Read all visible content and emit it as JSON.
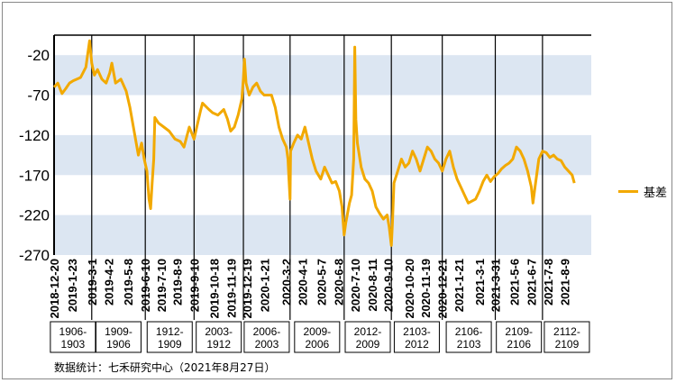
{
  "source_note": "数据统计：七禾研究中心（2021年8月27日）",
  "legend": {
    "label": "基差",
    "color": "#f2a900"
  },
  "colors": {
    "line": "#f2a900",
    "band": "#dce6f2",
    "axis": "#000000"
  },
  "chart_data": {
    "type": "line",
    "series": [
      {
        "name": "基差",
        "points": [
          [
            "2018-12-20",
            -60
          ],
          [
            "2018-12-27",
            -55
          ],
          [
            "2019-01-04",
            -68
          ],
          [
            "2019-01-11",
            -62
          ],
          [
            "2019-01-18",
            -55
          ],
          [
            "2019-01-25",
            -52
          ],
          [
            "2019-02-08",
            -48
          ],
          [
            "2019-02-18",
            -35
          ],
          [
            "2019-02-25",
            -2
          ],
          [
            "2019-03-01",
            -30
          ],
          [
            "2019-03-06",
            -45
          ],
          [
            "2019-03-12",
            -38
          ],
          [
            "2019-03-20",
            -50
          ],
          [
            "2019-03-28",
            -55
          ],
          [
            "2019-04-04",
            -42
          ],
          [
            "2019-04-08",
            -30
          ],
          [
            "2019-04-15",
            -55
          ],
          [
            "2019-04-25",
            -50
          ],
          [
            "2019-05-05",
            -65
          ],
          [
            "2019-05-12",
            -85
          ],
          [
            "2019-05-20",
            -115
          ],
          [
            "2019-05-28",
            -145
          ],
          [
            "2019-06-03",
            -130
          ],
          [
            "2019-06-08",
            -150
          ],
          [
            "2019-06-13",
            -165
          ],
          [
            "2019-06-17",
            -200
          ],
          [
            "2019-06-20",
            -212
          ],
          [
            "2019-06-23",
            -180
          ],
          [
            "2019-06-26",
            -150
          ],
          [
            "2019-06-28",
            -98
          ],
          [
            "2019-07-05",
            -105
          ],
          [
            "2019-07-15",
            -110
          ],
          [
            "2019-07-25",
            -115
          ],
          [
            "2019-08-05",
            -125
          ],
          [
            "2019-08-15",
            -128
          ],
          [
            "2019-08-22",
            -135
          ],
          [
            "2019-09-01",
            -110
          ],
          [
            "2019-09-10",
            -125
          ],
          [
            "2019-09-15",
            -110
          ],
          [
            "2019-09-22",
            -90
          ],
          [
            "2019-09-26",
            -80
          ],
          [
            "2019-10-08",
            -88
          ],
          [
            "2019-10-15",
            -92
          ],
          [
            "2019-10-25",
            -95
          ],
          [
            "2019-11-05",
            -88
          ],
          [
            "2019-11-12",
            -100
          ],
          [
            "2019-11-18",
            -115
          ],
          [
            "2019-11-25",
            -110
          ],
          [
            "2019-12-02",
            -95
          ],
          [
            "2019-12-09",
            -75
          ],
          [
            "2019-12-12",
            -50
          ],
          [
            "2019-12-14",
            -25
          ],
          [
            "2019-12-17",
            -55
          ],
          [
            "2019-12-23",
            -70
          ],
          [
            "2019-12-30",
            -60
          ],
          [
            "2020-01-06",
            -55
          ],
          [
            "2020-01-13",
            -65
          ],
          [
            "2020-01-20",
            -70
          ],
          [
            "2020-02-03",
            -70
          ],
          [
            "2020-02-10",
            -85
          ],
          [
            "2020-02-17",
            -110
          ],
          [
            "2020-02-24",
            -125
          ],
          [
            "2020-03-02",
            -135
          ],
          [
            "2020-03-05",
            -150
          ],
          [
            "2020-03-07",
            -175
          ],
          [
            "2020-03-09",
            -200
          ],
          [
            "2020-03-10",
            -140
          ],
          [
            "2020-03-16",
            -130
          ],
          [
            "2020-03-23",
            -120
          ],
          [
            "2020-03-30",
            -125
          ],
          [
            "2020-04-06",
            -110
          ],
          [
            "2020-04-13",
            -130
          ],
          [
            "2020-04-20",
            -150
          ],
          [
            "2020-04-27",
            -165
          ],
          [
            "2020-05-06",
            -175
          ],
          [
            "2020-05-13",
            -160
          ],
          [
            "2020-05-20",
            -170
          ],
          [
            "2020-05-27",
            -180
          ],
          [
            "2020-06-03",
            -178
          ],
          [
            "2020-06-10",
            -190
          ],
          [
            "2020-06-15",
            -210
          ],
          [
            "2020-06-19",
            -245
          ],
          [
            "2020-06-22",
            -230
          ],
          [
            "2020-06-29",
            -205
          ],
          [
            "2020-07-03",
            -195
          ],
          [
            "2020-07-07",
            -150
          ],
          [
            "2020-07-09",
            -10
          ],
          [
            "2020-07-11",
            -100
          ],
          [
            "2020-07-14",
            -130
          ],
          [
            "2020-07-21",
            -160
          ],
          [
            "2020-07-28",
            -175
          ],
          [
            "2020-08-04",
            -180
          ],
          [
            "2020-08-11",
            -190
          ],
          [
            "2020-08-18",
            -210
          ],
          [
            "2020-08-25",
            -218
          ],
          [
            "2020-09-01",
            -225
          ],
          [
            "2020-09-08",
            -220
          ],
          [
            "2020-09-12",
            -235
          ],
          [
            "2020-09-16",
            -258
          ],
          [
            "2020-09-18",
            -230
          ],
          [
            "2020-09-21",
            -180
          ],
          [
            "2020-09-28",
            -165
          ],
          [
            "2020-10-05",
            -150
          ],
          [
            "2020-10-12",
            -160
          ],
          [
            "2020-10-19",
            -155
          ],
          [
            "2020-10-26",
            -140
          ],
          [
            "2020-11-02",
            -150
          ],
          [
            "2020-11-09",
            -165
          ],
          [
            "2020-11-16",
            -150
          ],
          [
            "2020-11-23",
            -135
          ],
          [
            "2020-11-30",
            -140
          ],
          [
            "2020-12-07",
            -150
          ],
          [
            "2020-12-14",
            -155
          ],
          [
            "2020-12-21",
            -165
          ],
          [
            "2020-12-28",
            -150
          ],
          [
            "2021-01-04",
            -140
          ],
          [
            "2021-01-11",
            -160
          ],
          [
            "2021-01-18",
            -175
          ],
          [
            "2021-01-25",
            -185
          ],
          [
            "2021-02-01",
            -195
          ],
          [
            "2021-02-08",
            -205
          ],
          [
            "2021-02-22",
            -200
          ],
          [
            "2021-03-01",
            -190
          ],
          [
            "2021-03-08",
            -178
          ],
          [
            "2021-03-15",
            -170
          ],
          [
            "2021-03-22",
            -178
          ],
          [
            "2021-03-29",
            -172
          ],
          [
            "2021-04-05",
            -168
          ],
          [
            "2021-04-12",
            -162
          ],
          [
            "2021-04-19",
            -158
          ],
          [
            "2021-04-26",
            -155
          ],
          [
            "2021-05-03",
            -150
          ],
          [
            "2021-05-10",
            -135
          ],
          [
            "2021-05-17",
            -140
          ],
          [
            "2021-05-24",
            -150
          ],
          [
            "2021-05-31",
            -165
          ],
          [
            "2021-06-07",
            -185
          ],
          [
            "2021-06-10",
            -205
          ],
          [
            "2021-06-14",
            -185
          ],
          [
            "2021-06-21",
            -150
          ],
          [
            "2021-06-28",
            -140
          ],
          [
            "2021-07-05",
            -142
          ],
          [
            "2021-07-12",
            -148
          ],
          [
            "2021-07-19",
            -145
          ],
          [
            "2021-07-26",
            -150
          ],
          [
            "2021-08-02",
            -152
          ],
          [
            "2021-08-09",
            -160
          ],
          [
            "2021-08-16",
            -165
          ],
          [
            "2021-08-23",
            -170
          ],
          [
            "2021-08-27",
            -180
          ]
        ]
      }
    ],
    "ylim": [
      -270,
      5
    ],
    "yticks": [
      -20,
      -70,
      -120,
      -170,
      -220,
      -270
    ],
    "bands": [
      [
        -70,
        -20
      ],
      [
        -170,
        -120
      ],
      [
        -270,
        -220
      ]
    ],
    "x_range": [
      "2018-12-20",
      "2021-09-28"
    ],
    "x_ticks": [
      "2018-12-20",
      "2019-1-23",
      "2019-3-1",
      "2019-4-2",
      "2019-5-8",
      "2019-6-10",
      "2019-7-10",
      "2019-8-9",
      "2019-9-10",
      "2019-10-18",
      "2019-11-19",
      "2019-12-19",
      "2020-1-21",
      "2020-3-2",
      "2020-4-1",
      "2020-5-7",
      "2020-6-8",
      "2020-7-10",
      "2020-8-11",
      "2020-9-10",
      "2020-10-20",
      "2020-11-19",
      "2020-12-21",
      "2021-1-21",
      "2021-3-1",
      "2021-3-31",
      "2021-5-6",
      "2021-6-7",
      "2021-7-8",
      "2021-8-9"
    ],
    "contract_dividers": [
      "2019-03-01",
      "2019-06-10",
      "2019-09-10",
      "2019-12-12",
      "2020-03-09",
      "2020-06-19",
      "2020-09-16",
      "2020-12-21",
      "2021-03-31",
      "2021-06-28"
    ],
    "contract_labels": [
      [
        "1906-",
        "1903"
      ],
      [
        "1909-",
        "1906"
      ],
      [
        "1912-",
        "1909"
      ],
      [
        "2003-",
        "1912"
      ],
      [
        "2006-",
        "2003"
      ],
      [
        "2009-",
        "2006"
      ],
      [
        "2012-",
        "2009"
      ],
      [
        "2103-",
        "2012"
      ],
      [
        "2106-",
        "2103"
      ],
      [
        "2109-",
        "2106"
      ],
      [
        "2112-",
        "2109"
      ]
    ]
  }
}
